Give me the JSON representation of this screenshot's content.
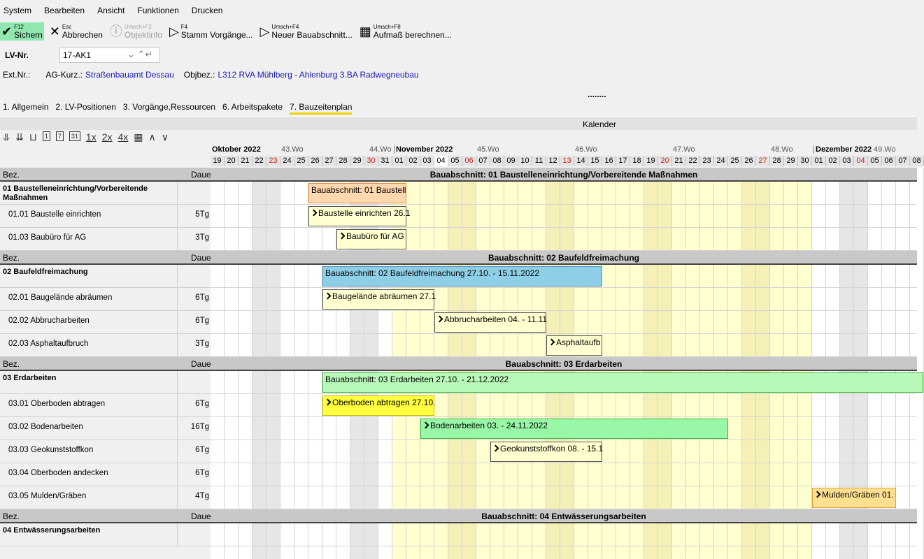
{
  "menu": [
    "System",
    "Bearbeiten",
    "Ansicht",
    "Funktionen",
    "Drucken"
  ],
  "toolbar": [
    {
      "key": "F12",
      "label": "Sichern",
      "icon": "check-icon"
    },
    {
      "key": "Esc",
      "label": "Abbrechen",
      "icon": "close-icon"
    },
    {
      "key": "Umsch+F2",
      "label": "Objektinfo",
      "icon": "info-icon",
      "disabled": true
    },
    {
      "key": "F4",
      "label": "Stamm Vorgänge...",
      "icon": "play-icon"
    },
    {
      "key": "Umsch+F4",
      "label": "Neuer Bauabschnitt...",
      "icon": "play-icon"
    },
    {
      "key": "Umsch+F8",
      "label": "Aufmaß berechnen...",
      "icon": "calculator-icon"
    }
  ],
  "lv": {
    "label": "LV-Nr.",
    "value": "17-AK1"
  },
  "info": {
    "ext_label": "Ext.Nr.:",
    "ag_label": "AG-Kurz.:",
    "ag_value": "Straßenbauamt Dessau",
    "obj_label": "Objbez.:",
    "obj_value": "L312 RVA Mühlberg - Ahlenburg  3.BA Radwegneubau"
  },
  "dots": "........",
  "tabs": [
    "1. Allgemein",
    "2. LV-Positionen",
    "3. Vorgänge,Ressourcen",
    "6. Arbeitspakete",
    "7. Bauzeitenplan"
  ],
  "active_tab": 4,
  "kalender": "Kalender",
  "gantt_tools": [
    "⥥",
    "⇊",
    "⊔",
    "1",
    "7",
    "31",
    "1x",
    "2x",
    "4x",
    "▦",
    "∧",
    "∨"
  ],
  "calendar": {
    "months": [
      {
        "label": "Oktober 2022",
        "start": 0
      },
      {
        "label": "November 2022",
        "start": 13
      },
      {
        "label": "Dezember 2022",
        "start": 43
      }
    ],
    "weeks": [
      {
        "label": "43.Wo",
        "start": 5
      },
      {
        "label": "44.Wo",
        "start": 12
      },
      {
        "label": "45.Wo",
        "start": 19
      },
      {
        "label": "46.Wo",
        "start": 26
      },
      {
        "label": "47.Wo",
        "start": 33
      },
      {
        "label": "48.Wo",
        "start": 40
      },
      {
        "label": "49.Wo",
        "start": 47
      }
    ],
    "days": [
      "19",
      "20",
      "21",
      "22",
      "23",
      "24",
      "25",
      "26",
      "27",
      "28",
      "29",
      "30",
      "31",
      "01",
      "02",
      "03",
      "04",
      "05",
      "06",
      "07",
      "08",
      "09",
      "10",
      "11",
      "12",
      "13",
      "14",
      "15",
      "16",
      "17",
      "18",
      "19",
      "20",
      "21",
      "22",
      "23",
      "24",
      "25",
      "26",
      "27",
      "28",
      "29",
      "30",
      "01",
      "02",
      "03",
      "04",
      "05",
      "06",
      "07",
      "08"
    ],
    "sundays": [
      4,
      11,
      18,
      25,
      32,
      39,
      46
    ],
    "saturdays": [
      3,
      10,
      17,
      24,
      31,
      38,
      45
    ],
    "highlight_month": [
      13,
      42
    ],
    "today": 16,
    "colors": {
      "sunday_text": "#d02020",
      "month_bg": "#ffffd0",
      "month_weekend": "#f5f0b8",
      "weekend": "#e6e6e6"
    }
  },
  "col_headers": {
    "bez": "Bez.",
    "dauer": "Daue"
  },
  "sections": [
    {
      "title": "Bauabschnitt: 01  Baustelleneinrichtung/Vorbereitende Maßnahmen",
      "name": "01  Baustelleneinrichtung/Vorbereitende Maßnahmen",
      "bar": {
        "text": "Bauabschnitt: 01  Baustell",
        "start": 7,
        "end": 13,
        "color": "#ffd8b0",
        "border": "#e89040"
      },
      "tasks": [
        {
          "name": "01.01 Baustelle einrichten",
          "dauer": "5Tg",
          "bar": {
            "text": "Baustelle einrichten 26.1",
            "start": 7,
            "end": 13,
            "color": "#ffffd0"
          }
        },
        {
          "name": "01.03 Baubüro für AG",
          "dauer": "3Tg",
          "bar": {
            "text": "Baubüro für AG",
            "start": 9,
            "end": 13,
            "color": "#ffffd0"
          }
        }
      ]
    },
    {
      "title": "Bauabschnitt: 02  Baufeldfreimachung",
      "name": "02  Baufeldfreimachung",
      "bar": {
        "text": "Bauabschnitt: 02  Baufeldfreimachung 27.10. - 15.11.2022",
        "start": 8,
        "end": 27,
        "color": "#8ecfe8",
        "border": "#4a90b8"
      },
      "tasks": [
        {
          "name": "02.01 Baugelände abräumen",
          "dauer": "6Tg",
          "bar": {
            "text": "Baugelände abräumen 27.1",
            "start": 8,
            "end": 15,
            "color": "#ffffd0"
          }
        },
        {
          "name": "02.02 Abbrucharbeiten",
          "dauer": "6Tg",
          "bar": {
            "text": "Abbrucharbeiten 04. - 11.11",
            "start": 16,
            "end": 23,
            "color": "#ffffd0"
          }
        },
        {
          "name": "02.03 Asphaltaufbruch",
          "dauer": "3Tg",
          "bar": {
            "text": "Asphaltaufb",
            "start": 24,
            "end": 27,
            "color": "#ffffd0"
          }
        }
      ]
    },
    {
      "title": "Bauabschnitt: 03  Erdarbeiten",
      "name": "03  Erdarbeiten",
      "bar": {
        "text": "Bauabschnitt: 03  Erdarbeiten 27.10. - 21.12.2022",
        "start": 8,
        "end": 60,
        "color": "#b8f8b8",
        "border": "#40b840"
      },
      "tasks": [
        {
          "name": "03.01 Oberboden abtragen",
          "dauer": "6Tg",
          "bar": {
            "text": "Oberboden abtragen 27.10.",
            "start": 8,
            "end": 15,
            "color": "#ffff40",
            "border": "#c8b800"
          }
        },
        {
          "name": "03.02 Bodenarbeiten",
          "dauer": "16Tg",
          "bar": {
            "text": "Bodenarbeiten 03. - 24.11.2022",
            "start": 15,
            "end": 36,
            "color": "#98f8a8",
            "border": "#40b840"
          }
        },
        {
          "name": "03.03 Geokunststoffkon",
          "dauer": "6Tg",
          "bar": {
            "text": "Geokunststoffkon 08. - 15.1",
            "start": 20,
            "end": 27,
            "color": "#ffffd0"
          }
        },
        {
          "name": "03.04 Oberboden andecken",
          "dauer": "6Tg"
        },
        {
          "name": "03.05 Mulden/Gräben",
          "dauer": "4Tg",
          "bar": {
            "text": "Mulden/Gräben 01.",
            "start": 43,
            "end": 48,
            "color": "#ffe090",
            "border": "#e0a040"
          }
        }
      ]
    },
    {
      "title": "Bauabschnitt: 04  Entwässerungsarbeiten",
      "name": "04  Entwässerungsarbeiten",
      "tasks": []
    }
  ]
}
